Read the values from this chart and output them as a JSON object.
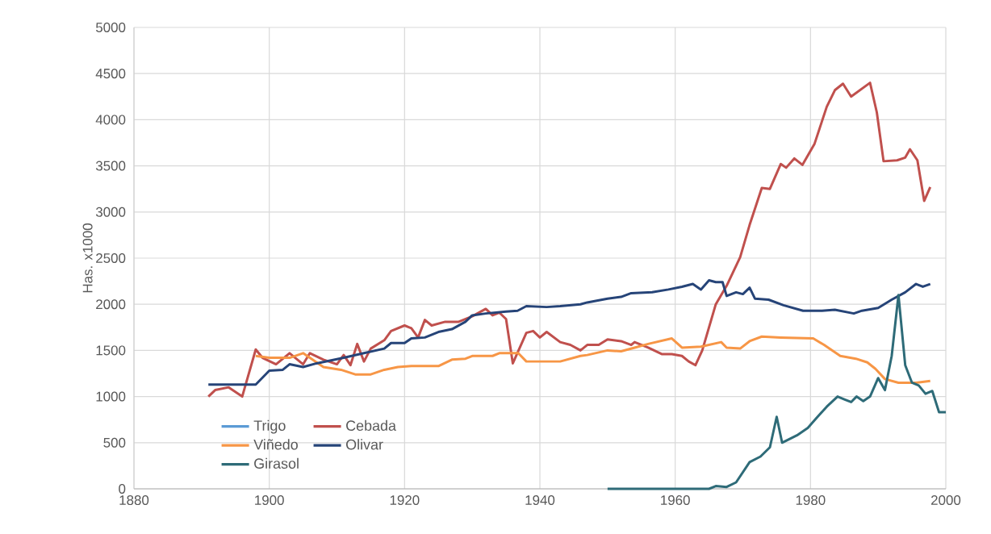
{
  "chart_data": {
    "type": "line",
    "ylabel": "Has. x1000",
    "xlim": [
      1880,
      2000
    ],
    "xticks": [
      1880,
      1900,
      1920,
      1940,
      1960,
      1980,
      2000
    ],
    "ylim": [
      0,
      5000
    ],
    "yticks": [
      0,
      500,
      1000,
      1500,
      2000,
      2500,
      3000,
      3500,
      4000,
      4500,
      5000
    ],
    "grid": true,
    "legend": "bottom left",
    "series": [
      {
        "name": "Trigo",
        "color": "#5b9bd5",
        "values": [
          null
        ]
      },
      {
        "name": "Cebada",
        "color": "#c0504d",
        "x": [
          1891,
          1892,
          1894,
          1896,
          1898,
          1899,
          1901,
          1903,
          1905,
          1906,
          1908,
          1910,
          1911,
          1912,
          1913,
          1914,
          1915,
          1917,
          1918,
          1920,
          1921,
          1922,
          1923,
          1924,
          1926,
          1928,
          1930,
          1932,
          1933,
          1934,
          1935,
          1936,
          1938,
          1939,
          1940,
          1941,
          1943,
          1944.5,
          1946,
          1947,
          1948.7,
          1950,
          1952,
          1953.5,
          1954,
          1956,
          1958,
          1959.5,
          1961,
          1962,
          1963,
          1964,
          1966,
          1967.6,
          1969.6,
          1971,
          1972.8,
          1974,
          1975.6,
          1976.4,
          1977.6,
          1978.8,
          1980.6,
          1982.4,
          1983.6,
          1984.8,
          1986,
          1988.8,
          1989.8,
          1990.8,
          1992.8,
          1994,
          1994.7,
          1995.8,
          1996.8,
          1997.7
        ],
        "values": [
          1000,
          1070,
          1100,
          1000,
          1510,
          1420,
          1350,
          1470,
          1350,
          1470,
          1400,
          1350,
          1450,
          1340,
          1570,
          1380,
          1520,
          1610,
          1710,
          1770,
          1740,
          1640,
          1830,
          1770,
          1810,
          1810,
          1870,
          1950,
          1880,
          1910,
          1840,
          1360,
          1690,
          1710,
          1640,
          1700,
          1590,
          1560,
          1500,
          1560,
          1560,
          1620,
          1600,
          1560,
          1590,
          1530,
          1460,
          1460,
          1440,
          1380,
          1340,
          1500,
          2000,
          2200,
          2510,
          2860,
          3260,
          3250,
          3520,
          3480,
          3580,
          3510,
          3740,
          4140,
          4320,
          4390,
          4250,
          4400,
          4080,
          3550,
          3560,
          3590,
          3680,
          3560,
          3120,
          3270
        ]
      },
      {
        "name": "Viñedo",
        "color": "#f79646",
        "x": [
          1898,
          1900,
          1903,
          1905,
          1906,
          1908,
          1910.6,
          1912.7,
          1915,
          1917,
          1919,
          1921,
          1925,
          1927,
          1929,
          1930,
          1933,
          1934,
          1936.8,
          1938,
          1941,
          1943,
          1946,
          1947,
          1950,
          1952,
          1954,
          1956,
          1959.5,
          1961,
          1963.8,
          1966.8,
          1967.6,
          1969.6,
          1971,
          1972.8,
          1975.6,
          1980.4,
          1982,
          1984.4,
          1986.7,
          1988.4,
          1989.6,
          1991,
          1993,
          1995.6,
          1997.7
        ],
        "values": [
          1440,
          1420,
          1420,
          1470,
          1420,
          1320,
          1290,
          1240,
          1240,
          1290,
          1320,
          1330,
          1330,
          1400,
          1410,
          1440,
          1440,
          1470,
          1470,
          1380,
          1380,
          1380,
          1440,
          1450,
          1500,
          1490,
          1530,
          1570,
          1630,
          1530,
          1540,
          1590,
          1530,
          1520,
          1600,
          1650,
          1640,
          1630,
          1560,
          1440,
          1410,
          1370,
          1300,
          1190,
          1150,
          1150,
          1170
        ]
      },
      {
        "name": "Olivar",
        "color": "#264478",
        "x": [
          1891,
          1898,
          1900,
          1902,
          1903,
          1905,
          1907,
          1911,
          1914,
          1917,
          1918,
          1920,
          1921,
          1923,
          1925,
          1927,
          1929,
          1930,
          1932,
          1935,
          1936.7,
          1938,
          1941,
          1943,
          1946,
          1947,
          1950,
          1952,
          1953.5,
          1956.6,
          1959,
          1961,
          1962.6,
          1963.8,
          1965,
          1966,
          1967,
          1967.6,
          1969,
          1970,
          1971,
          1971.8,
          1973.8,
          1976,
          1978.9,
          1981.7,
          1983.6,
          1986.4,
          1987.6,
          1990,
          1992,
          1994,
          1995.6,
          1996.6,
          1997.7
        ],
        "values": [
          1130,
          1130,
          1280,
          1290,
          1350,
          1320,
          1360,
          1420,
          1470,
          1520,
          1580,
          1580,
          1630,
          1640,
          1700,
          1730,
          1810,
          1880,
          1900,
          1920,
          1930,
          1980,
          1970,
          1980,
          2000,
          2020,
          2060,
          2080,
          2120,
          2130,
          2160,
          2190,
          2220,
          2160,
          2260,
          2240,
          2240,
          2090,
          2130,
          2110,
          2180,
          2060,
          2050,
          1990,
          1930,
          1930,
          1940,
          1900,
          1930,
          1960,
          2050,
          2130,
          2220,
          2190,
          2220
        ]
      },
      {
        "name": "Girasol",
        "color": "#2e6b78",
        "x": [
          1950,
          1965,
          1966,
          1967.6,
          1969,
          1971,
          1972.6,
          1974,
          1975,
          1975.8,
          1978,
          1979.6,
          1980.8,
          1982.4,
          1984,
          1985,
          1986,
          1986.8,
          1987.8,
          1988.8,
          1990,
          1991,
          1992,
          1993,
          1994,
          1995,
          1996,
          1997,
          1998,
          1999,
          2000
        ],
        "values": [
          0,
          0,
          30,
          20,
          70,
          290,
          350,
          450,
          780,
          500,
          580,
          660,
          760,
          890,
          1000,
          970,
          940,
          1000,
          950,
          1000,
          1200,
          1070,
          1440,
          2100,
          1340,
          1150,
          1120,
          1030,
          1060,
          830,
          830
        ]
      }
    ]
  }
}
